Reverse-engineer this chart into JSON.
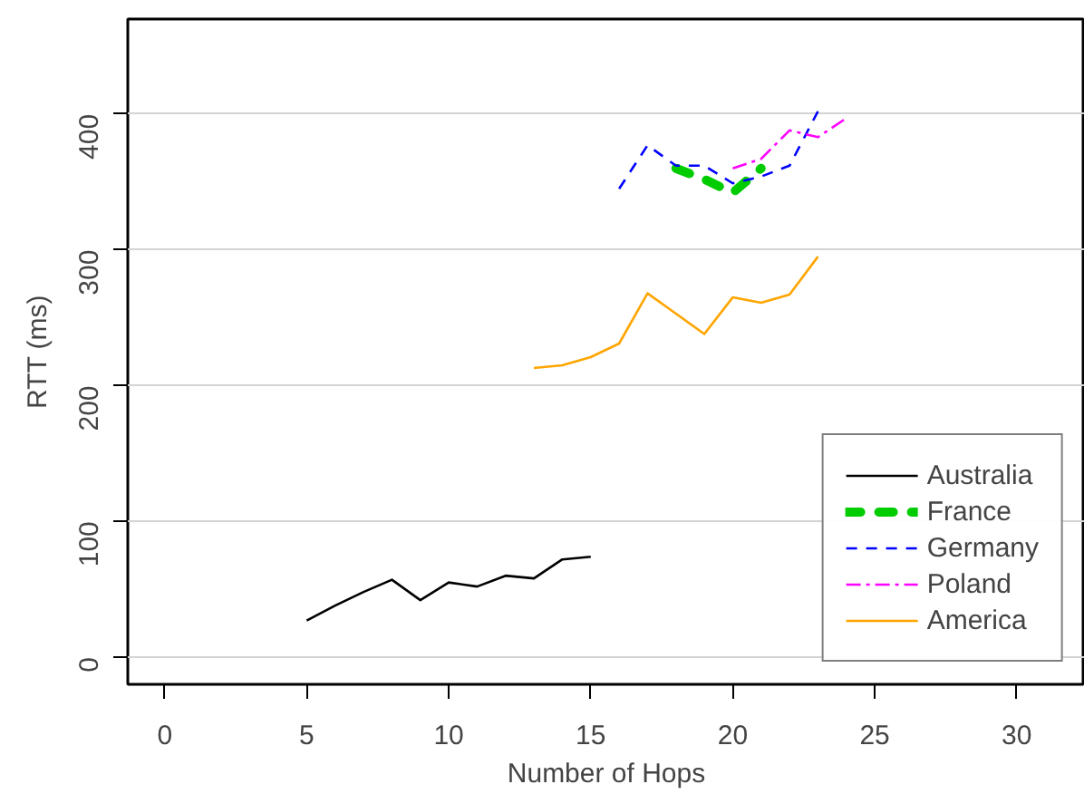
{
  "chart_data": {
    "type": "line",
    "xlabel": "Number of Hops",
    "ylabel": "RTT (ms)",
    "xlim": [
      -1.3,
      32.4
    ],
    "ylim": [
      -20,
      470
    ],
    "xticks": [
      0,
      5,
      10,
      15,
      20,
      25,
      30
    ],
    "yticks": [
      0,
      100,
      200,
      300,
      400
    ],
    "grid": "y",
    "legend": "bottom right",
    "series": [
      {
        "name": "Australia",
        "color": "#000000",
        "line_style": "solid",
        "x": [
          5,
          6,
          7,
          8,
          9,
          10,
          11,
          12,
          13,
          14,
          15
        ],
        "values": [
          27,
          38,
          48,
          57,
          42,
          55,
          52,
          60,
          58,
          72,
          74
        ]
      },
      {
        "name": "France",
        "color": "#00cc00",
        "line_style": "dashed",
        "x": [
          18,
          19,
          20,
          21
        ],
        "values": [
          360,
          352,
          342,
          360
        ]
      },
      {
        "name": "Germany",
        "color": "#0000ff",
        "line_style": "dashed",
        "x": [
          16,
          17,
          18,
          19,
          20,
          21,
          22,
          23
        ],
        "values": [
          345,
          377,
          362,
          362,
          349,
          354,
          362,
          402
        ]
      },
      {
        "name": "Poland",
        "color": "#ff00ff",
        "line_style": "dashdot",
        "x": [
          20,
          21,
          22,
          23,
          24
        ],
        "values": [
          360,
          367,
          388,
          383,
          397
        ]
      },
      {
        "name": "America",
        "color": "#ffa500",
        "line_style": "solid",
        "x": [
          13,
          14,
          15,
          16,
          17,
          18,
          19,
          20,
          21,
          22,
          23
        ],
        "values": [
          213,
          215,
          221,
          231,
          268,
          253,
          238,
          265,
          261,
          267,
          295
        ]
      }
    ]
  }
}
